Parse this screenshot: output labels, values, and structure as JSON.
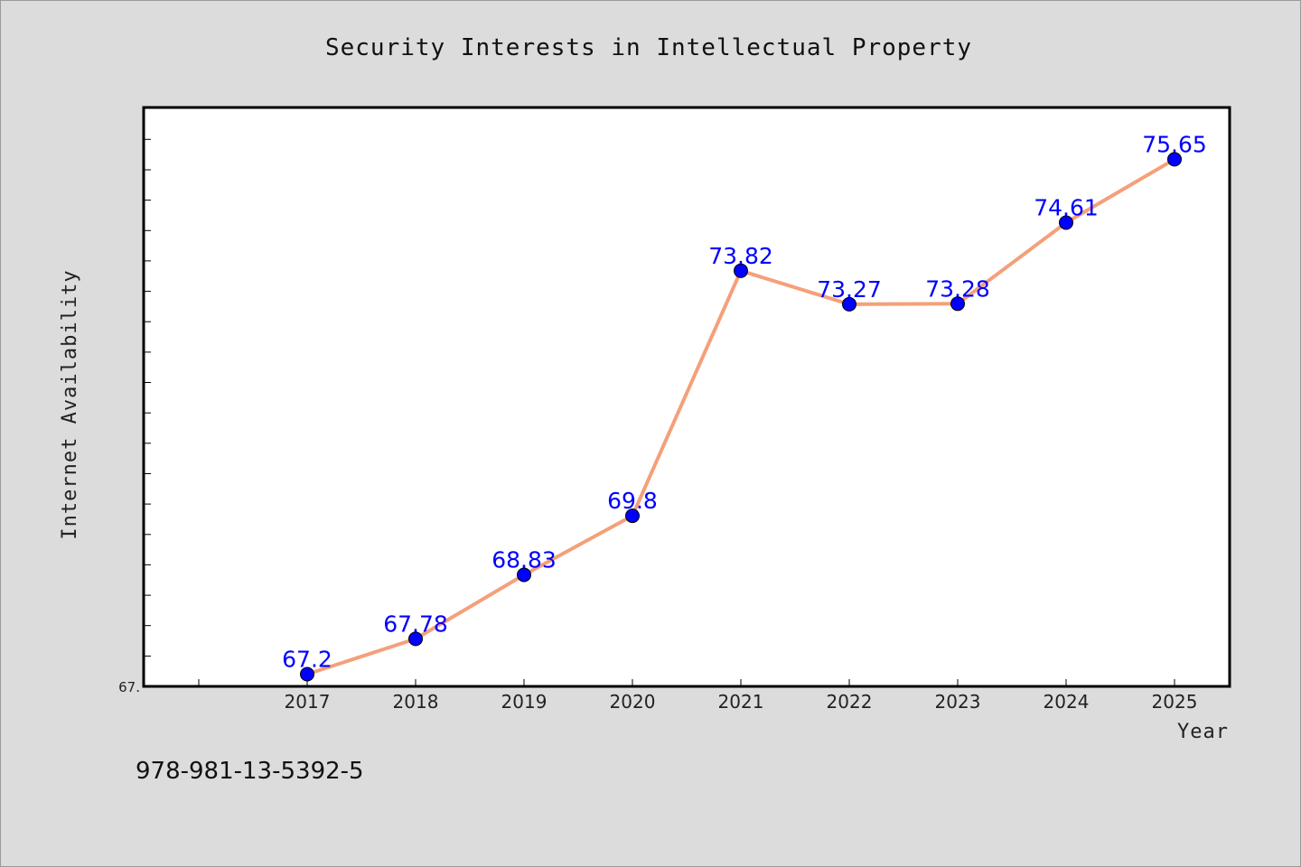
{
  "chart_data": {
    "type": "line",
    "title": "Security Interests in Intellectual Property",
    "xlabel": "Year",
    "ylabel": "Internet Availability",
    "x": [
      "2017",
      "2018",
      "2019",
      "2020",
      "2021",
      "2022",
      "2023",
      "2024",
      "2025"
    ],
    "series": [
      {
        "values": [
          67.2,
          67.78,
          68.83,
          69.8,
          73.82,
          73.27,
          73.28,
          74.61,
          75.65
        ],
        "data_labels": [
          "67.2",
          "67.78",
          "68.83",
          "69.8",
          "73.82",
          "73.27",
          "73.28",
          "74.61",
          "75.65"
        ],
        "line_color": "#f4a07a",
        "marker_color": "#0000ff"
      }
    ],
    "y_tick_labels": [
      "67."
    ],
    "ylim": [
      67.0,
      76.5
    ],
    "grid": false,
    "legend": "none"
  },
  "footer": {
    "isbn": "978-981-13-5392-5"
  }
}
